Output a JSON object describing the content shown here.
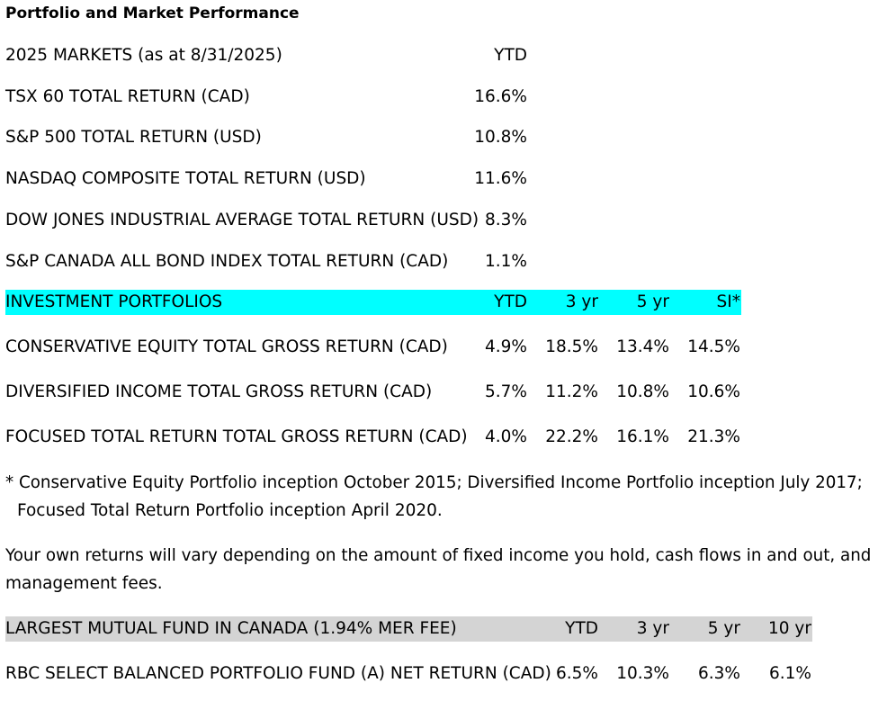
{
  "title": "Portfolio and Market Performance",
  "markets": {
    "header_label": "2025 MARKETS (as at 8/31/2025)",
    "header_ytd": "YTD",
    "rows": [
      {
        "label": "TSX 60 TOTAL RETURN (CAD)",
        "ytd": "16.6%"
      },
      {
        "label": "S&P 500 TOTAL RETURN (USD)",
        "ytd": "10.8%"
      },
      {
        "label": "NASDAQ COMPOSITE TOTAL RETURN (USD)",
        "ytd": "11.6%"
      },
      {
        "label": "DOW JONES INDUSTRIAL AVERAGE TOTAL RETURN (USD)",
        "ytd": "8.3%"
      },
      {
        "label": "S&P CANADA ALL BOND INDEX TOTAL RETURN (CAD)",
        "ytd": "1.1%"
      }
    ]
  },
  "portfolios": {
    "header_label": "INVESTMENT PORTFOLIOS",
    "headers": [
      "YTD",
      "3 yr",
      "5 yr",
      "SI*"
    ],
    "highlight_color": "#00ffff",
    "rows": [
      {
        "label": "CONSERVATIVE EQUITY TOTAL GROSS RETURN (CAD)",
        "values": [
          "4.9%",
          "18.5%",
          "13.4%",
          "14.5%"
        ]
      },
      {
        "label": "DIVERSIFIED INCOME TOTAL GROSS RETURN (CAD)",
        "values": [
          "5.7%",
          "11.2%",
          "10.8%",
          "10.6%"
        ]
      },
      {
        "label": "FOCUSED TOTAL RETURN TOTAL GROSS RETURN (CAD)",
        "values": [
          "4.0%",
          "22.2%",
          "16.1%",
          "21.3%"
        ]
      }
    ]
  },
  "notes": {
    "footnote_line1": "* Conservative Equity Portfolio inception October 2015; Diversified Income Portfolio inception July 2017;",
    "footnote_line2": "Focused Total Return Portfolio inception April 2020.",
    "disclaimer_line1": "Your own returns will vary depending on the amount of fixed income you hold, cash flows in and out, and",
    "disclaimer_line2": "management fees."
  },
  "mutual_fund": {
    "header_label": "LARGEST MUTUAL FUND IN CANADA (1.94% MER FEE)",
    "headers": [
      "YTD",
      "3 yr",
      "5 yr",
      "10 yr"
    ],
    "highlight_color": "#d4d4d4",
    "rows": [
      {
        "label": "RBC SELECT BALANCED PORTFOLIO FUND (A) NET RETURN (CAD)",
        "values": [
          "6.5%",
          "10.3%",
          "6.3%",
          "6.1%"
        ]
      }
    ]
  }
}
